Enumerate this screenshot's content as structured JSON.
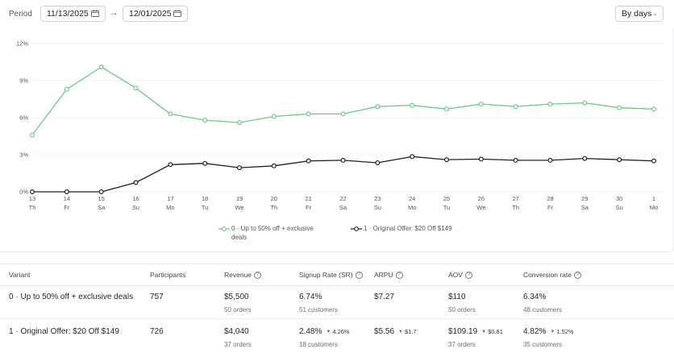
{
  "period": {
    "label": "Period",
    "start_date": "11/13/2025",
    "end_date": "12/01/2025",
    "arrow": "→"
  },
  "granularity": {
    "selected": "By days"
  },
  "chart_data": {
    "type": "line",
    "x": [
      {
        "day": "13",
        "weekday": "Th"
      },
      {
        "day": "14",
        "weekday": "Fr"
      },
      {
        "day": "15",
        "weekday": "Sa"
      },
      {
        "day": "16",
        "weekday": "Su"
      },
      {
        "day": "17",
        "weekday": "Mo"
      },
      {
        "day": "18",
        "weekday": "Tu"
      },
      {
        "day": "19",
        "weekday": "We"
      },
      {
        "day": "20",
        "weekday": "Th"
      },
      {
        "day": "21",
        "weekday": "Fr"
      },
      {
        "day": "22",
        "weekday": "Sa"
      },
      {
        "day": "23",
        "weekday": "Su"
      },
      {
        "day": "24",
        "weekday": "Mo"
      },
      {
        "day": "25",
        "weekday": "Tu"
      },
      {
        "day": "26",
        "weekday": "We"
      },
      {
        "day": "27",
        "weekday": "Th"
      },
      {
        "day": "28",
        "weekday": "Fr"
      },
      {
        "day": "29",
        "weekday": "Sa"
      },
      {
        "day": "30",
        "weekday": "Su"
      },
      {
        "day": "1",
        "weekday": "Mo"
      }
    ],
    "yticks": [
      "0%",
      "3%",
      "6%",
      "9%",
      "12%"
    ],
    "ylim": [
      0,
      12
    ],
    "grid": true,
    "legend_position": "bottom",
    "series": [
      {
        "name": "0 · Up to 50% off + exclusive deals",
        "color": "#6cc98a",
        "values": [
          4.6,
          8.3,
          10.1,
          8.4,
          6.3,
          5.8,
          5.6,
          6.1,
          6.3,
          6.3,
          6.9,
          7.0,
          6.7,
          7.1,
          6.9,
          7.1,
          7.2,
          6.8,
          6.7
        ]
      },
      {
        "name": "1 · Original Offer: $20 Off $149",
        "color": "#1f2328",
        "values": [
          0,
          0,
          0,
          0.75,
          2.2,
          2.3,
          1.95,
          2.1,
          2.5,
          2.55,
          2.35,
          2.85,
          2.6,
          2.65,
          2.55,
          2.55,
          2.7,
          2.6,
          2.5
        ]
      }
    ]
  },
  "legend": [
    {
      "line1": "0 · Up to 50% off + exclusive",
      "line2": "deals",
      "color": "#6cc98a"
    },
    {
      "line1": "1 · Original Offer: $20 Off $149",
      "line2": "",
      "color": "#1f2328"
    }
  ],
  "table": {
    "headers": {
      "variant": "Variant",
      "participants": "Participants",
      "revenue": "Revenue",
      "signup_rate": "Signup Rate (SR)",
      "arpu": "ARPU",
      "aov": "AOV",
      "conversion": "Conversion rate"
    },
    "info_glyph": "?",
    "rows": [
      {
        "variant": "0 · Up to 50% off + exclusive deals",
        "participants": "757",
        "revenue": "$5,500",
        "revenue_sub": "50 orders",
        "signup_rate": "6.74%",
        "signup_sub": "51 customers",
        "signup_delta": "",
        "arpu": "$7.27",
        "arpu_delta": "",
        "aov": "$110",
        "aov_sub": "50 orders",
        "aov_delta": "",
        "conversion": "6.34%",
        "conversion_sub": "48 customers",
        "conversion_delta": ""
      },
      {
        "variant": "1 · Original Offer: $20 Off $149",
        "participants": "726",
        "revenue": "$4,040",
        "revenue_sub": "37 orders",
        "signup_rate": "2.48%",
        "signup_sub": "18 customers",
        "signup_delta": "4.26%",
        "arpu": "$5.56",
        "arpu_delta": "$1.7",
        "aov": "$109.19",
        "aov_sub": "37 orders",
        "aov_delta": "$0.81",
        "conversion": "4.82%",
        "conversion_sub": "35 customers",
        "conversion_delta": "1.52%"
      }
    ]
  }
}
